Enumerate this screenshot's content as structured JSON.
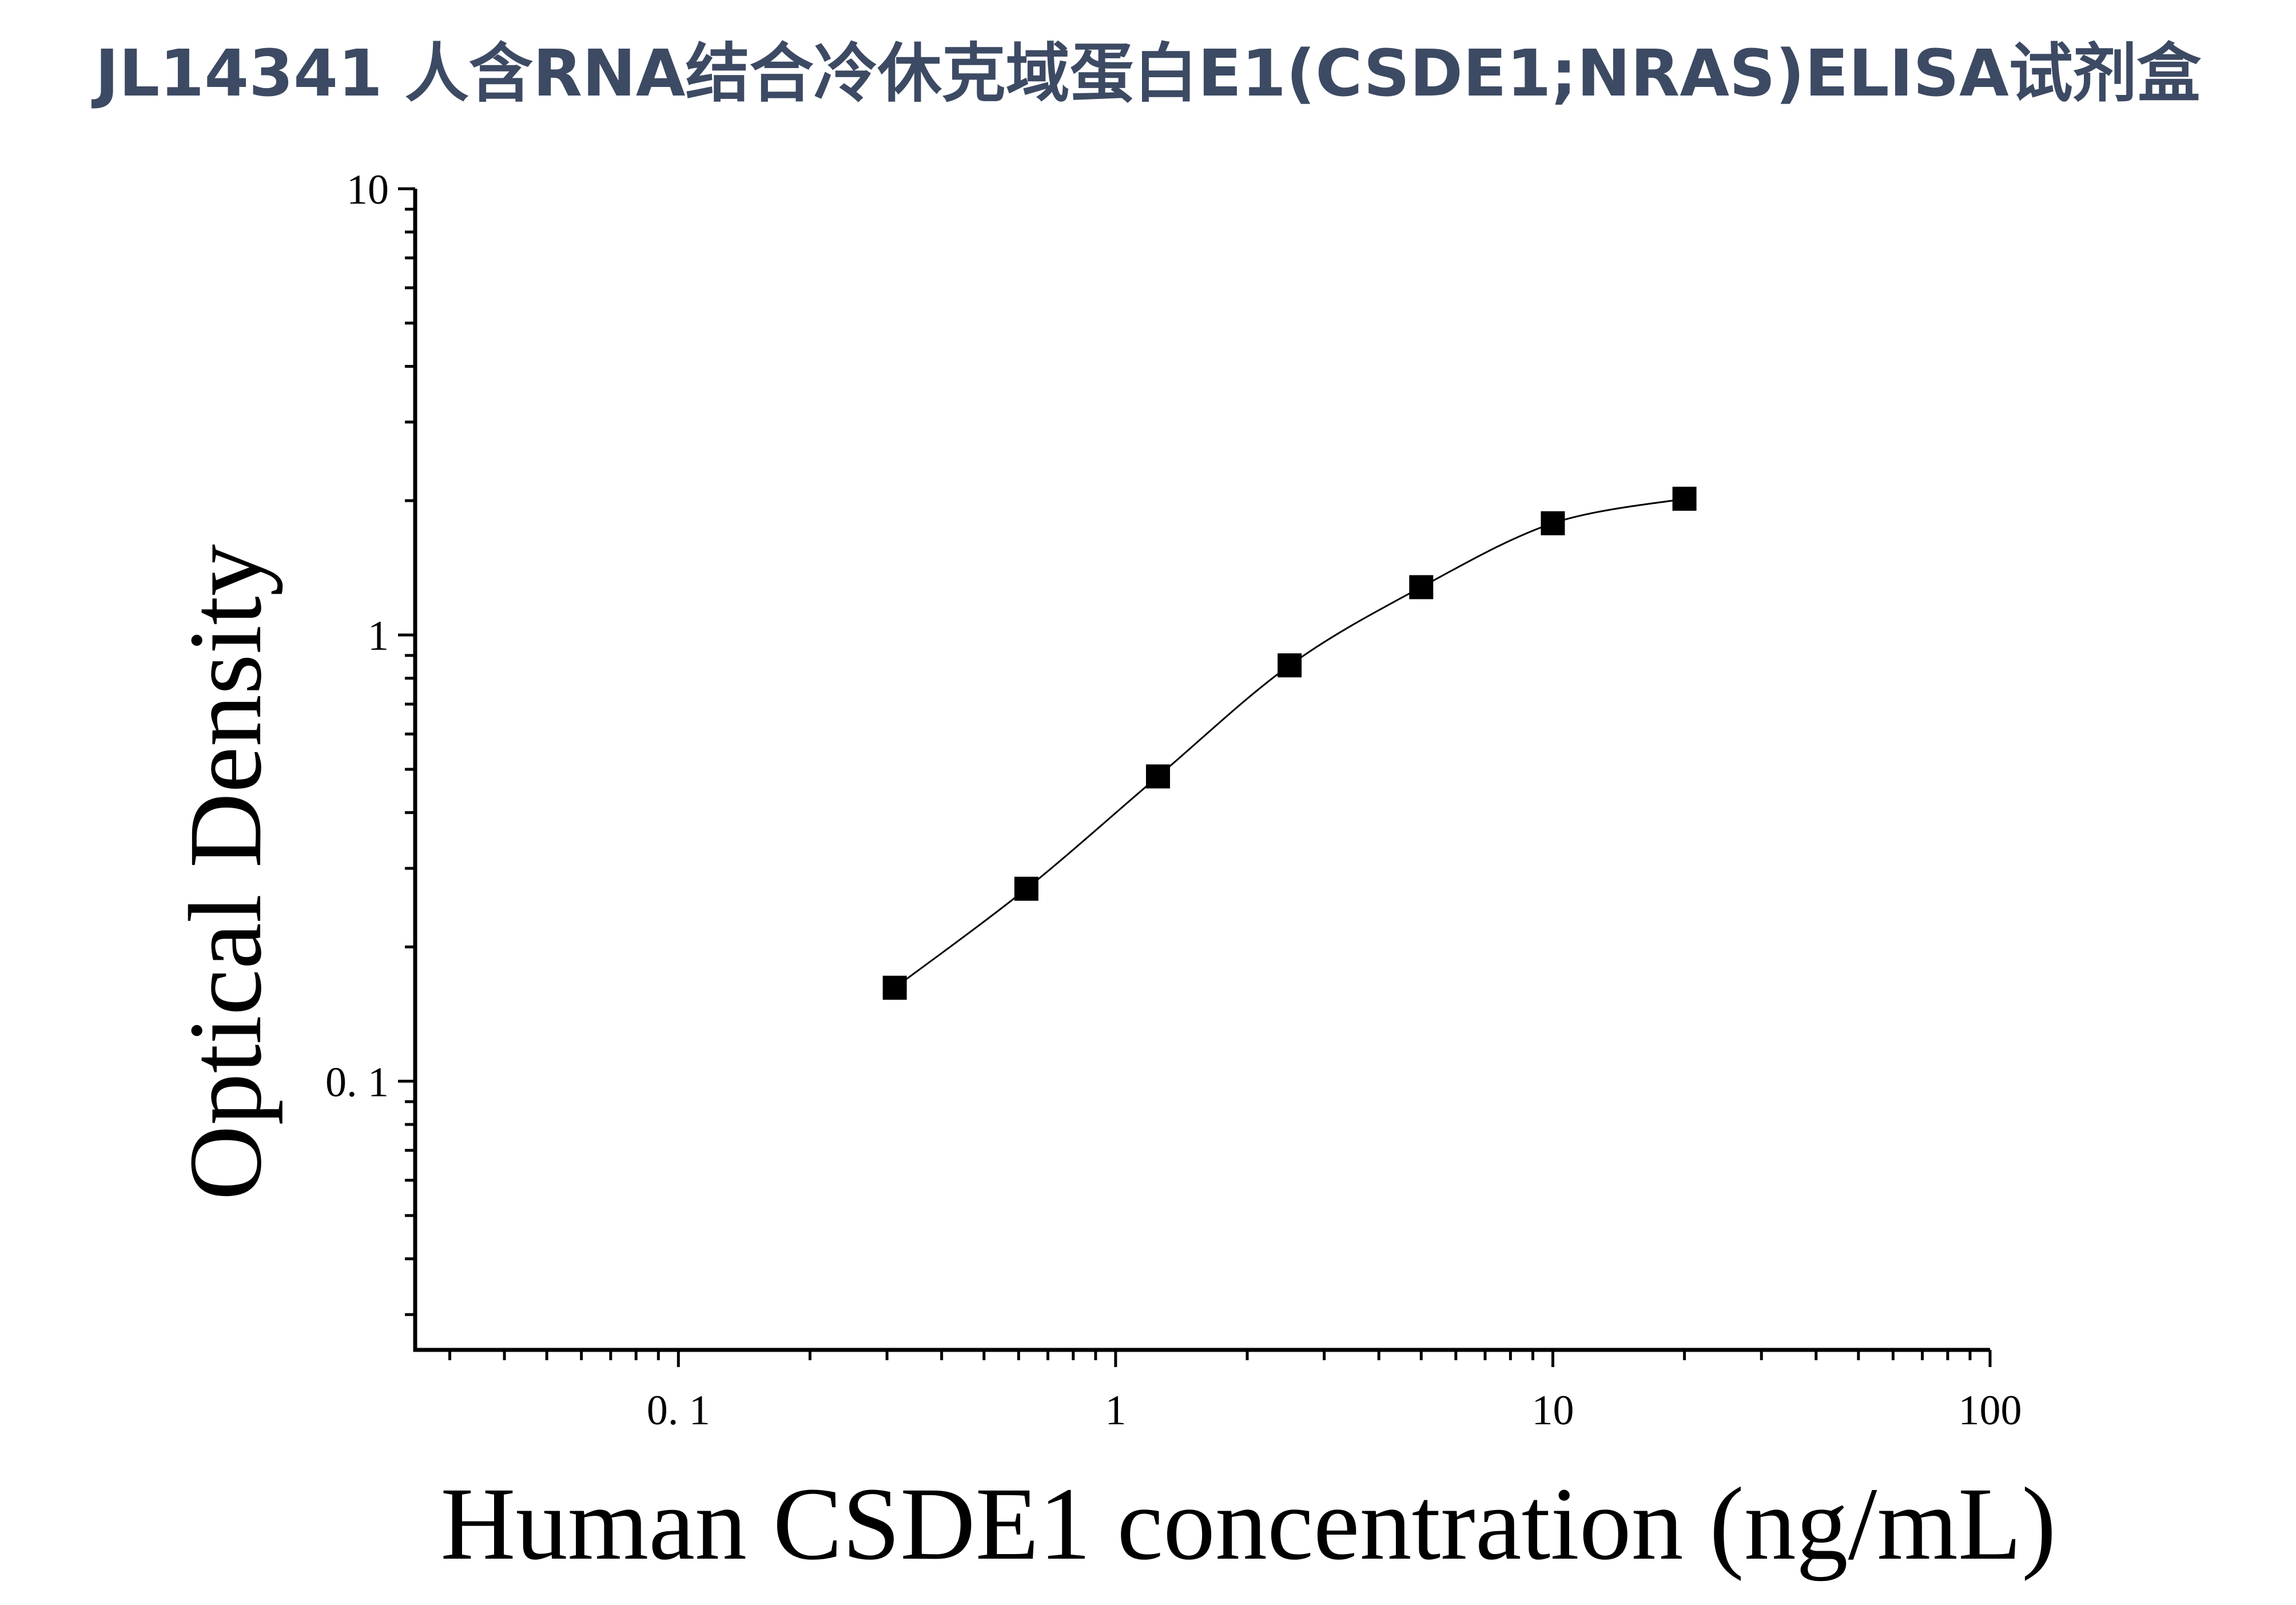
{
  "page": {
    "title": "JL14341 人含RNA结合冷休克域蛋白E1(CSDE1;NRAS)ELISA试剂盒"
  },
  "chart_data": {
    "type": "scatter",
    "title": "JL14341 人含RNA结合冷休克域蛋白E1(CSDE1;NRAS)ELISA试剂盒",
    "xlabel": "Human CSDE1 concentration (ng/mL)",
    "ylabel": "Optical Density",
    "xscale": "log",
    "yscale": "log",
    "xlim": [
      0.025,
      100
    ],
    "ylim": [
      0.025,
      10
    ],
    "x_ticks": [
      {
        "value": 0.1,
        "label": "0. 1"
      },
      {
        "value": 1,
        "label": "1"
      },
      {
        "value": 10,
        "label": "10"
      },
      {
        "value": 100,
        "label": "100"
      }
    ],
    "y_ticks": [
      {
        "value": 0.1,
        "label": "0. 1"
      },
      {
        "value": 1,
        "label": "1"
      },
      {
        "value": 10,
        "label": "10"
      }
    ],
    "grid": false,
    "legend": "none",
    "marker": "square",
    "fit": "four-parameter logistic curve",
    "series": [
      {
        "x": [
          0.3125,
          0.625,
          1.25,
          2.5,
          5,
          10,
          20
        ],
        "y": [
          0.162,
          0.27,
          0.482,
          0.855,
          1.28,
          1.78,
          2.02
        ]
      }
    ],
    "colors": {
      "title": "#3d4a63",
      "axes": "#000000",
      "markers": "#000000",
      "curve": "#000000"
    }
  }
}
